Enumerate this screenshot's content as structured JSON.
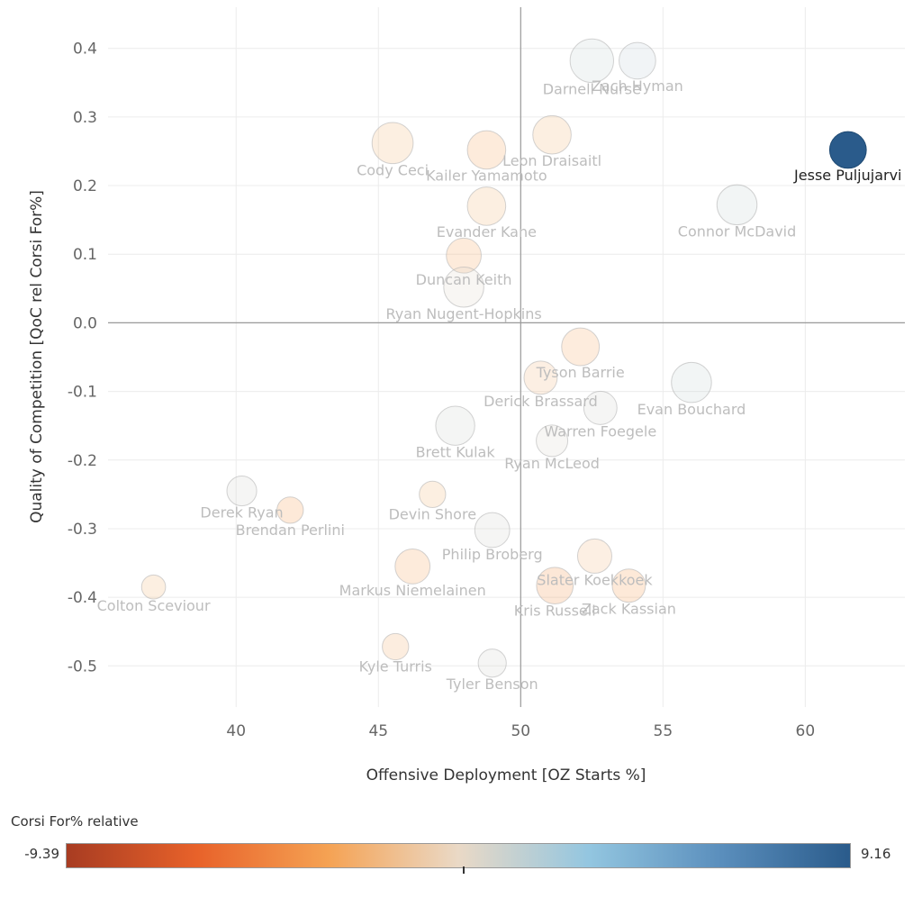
{
  "chart_data": {
    "type": "scatter",
    "title": "",
    "xlabel": "Offensive Deployment [OZ Starts %]",
    "ylabel": "Quality of Competition [QoC rel Corsi For%]",
    "xlim": [
      35.5,
      63.5
    ],
    "ylim": [
      -0.56,
      0.46
    ],
    "xticks": [
      "40",
      "45",
      "50",
      "55",
      "60"
    ],
    "yticks": [
      "0.4",
      "0.3",
      "0.2",
      "0.1",
      "0.0",
      "-0.1",
      "-0.2",
      "-0.3",
      "-0.4",
      "-0.5"
    ],
    "reference_lines": {
      "x": 50,
      "y": 0.0
    },
    "grid": true,
    "size_encoding": "relative ice time",
    "color_legend": {
      "title": "Corsi For% relative",
      "min_label": "-9.39",
      "max_label": "9.16",
      "min": -9.39,
      "max": 9.16,
      "colors": [
        "#a83c22",
        "#e8622a",
        "#f5a253",
        "#ead9c6",
        "#93c6e0",
        "#5b8fbd",
        "#2a5b8b"
      ]
    },
    "points": [
      {
        "name": "Zach Hyman",
        "x": 54.1,
        "y": 0.382,
        "size": 0.65,
        "cfrel": 1.5
      },
      {
        "name": "Darnell Nurse",
        "x": 52.5,
        "y": 0.382,
        "size": 0.85,
        "cfrel": 1.2
      },
      {
        "name": "Leon Draisaitl",
        "x": 51.1,
        "y": 0.274,
        "size": 0.7,
        "cfrel": -2.2
      },
      {
        "name": "Cody Ceci",
        "x": 45.5,
        "y": 0.262,
        "size": 0.78,
        "cfrel": -2.2
      },
      {
        "name": "Kailer Yamamoto",
        "x": 48.8,
        "y": 0.252,
        "size": 0.7,
        "cfrel": -3.0
      },
      {
        "name": "Jesse Puljujarvi",
        "x": 61.5,
        "y": 0.252,
        "size": 0.65,
        "cfrel": 9.16
      },
      {
        "name": "Connor McDavid",
        "x": 57.6,
        "y": 0.172,
        "size": 0.75,
        "cfrel": 1.2
      },
      {
        "name": "Evander Kane",
        "x": 48.8,
        "y": 0.17,
        "size": 0.7,
        "cfrel": -2.2
      },
      {
        "name": "Duncan Keith",
        "x": 48.0,
        "y": 0.098,
        "size": 0.6,
        "cfrel": -3.0
      },
      {
        "name": "Ryan Nugent-Hopkins",
        "x": 48.0,
        "y": 0.052,
        "size": 0.75,
        "cfrel": 0.3
      },
      {
        "name": "Tyson Barrie",
        "x": 52.1,
        "y": -0.035,
        "size": 0.68,
        "cfrel": -2.8
      },
      {
        "name": "Derick Brassard",
        "x": 50.7,
        "y": -0.08,
        "size": 0.55,
        "cfrel": -2.0
      },
      {
        "name": "Evan Bouchard",
        "x": 56.0,
        "y": -0.087,
        "size": 0.75,
        "cfrel": 1.3
      },
      {
        "name": "Warren Foegele",
        "x": 52.8,
        "y": -0.124,
        "size": 0.55,
        "cfrel": 0.8
      },
      {
        "name": "Brett Kulak",
        "x": 47.7,
        "y": -0.15,
        "size": 0.72,
        "cfrel": 1.0
      },
      {
        "name": "Ryan McLeod",
        "x": 51.1,
        "y": -0.172,
        "size": 0.5,
        "cfrel": 0.5
      },
      {
        "name": "Derek Ryan",
        "x": 40.2,
        "y": -0.245,
        "size": 0.45,
        "cfrel": 0.8
      },
      {
        "name": "Devin Shore",
        "x": 46.9,
        "y": -0.25,
        "size": 0.35,
        "cfrel": -2.2
      },
      {
        "name": "Brendan Perlini",
        "x": 41.9,
        "y": -0.273,
        "size": 0.35,
        "cfrel": -3.5
      },
      {
        "name": "Philip Broberg",
        "x": 49.0,
        "y": -0.302,
        "size": 0.6,
        "cfrel": 0.8
      },
      {
        "name": "Slater Koekkoek",
        "x": 52.6,
        "y": -0.34,
        "size": 0.58,
        "cfrel": -2.0
      },
      {
        "name": "Markus Niemelainen",
        "x": 46.2,
        "y": -0.355,
        "size": 0.6,
        "cfrel": -3.0
      },
      {
        "name": "Zack Kassian",
        "x": 53.8,
        "y": -0.383,
        "size": 0.55,
        "cfrel": -3.5
      },
      {
        "name": "Kris Russell",
        "x": 51.2,
        "y": -0.383,
        "size": 0.65,
        "cfrel": -4.0
      },
      {
        "name": "Colton Sceviour",
        "x": 37.1,
        "y": -0.385,
        "size": 0.28,
        "cfrel": -2.2
      },
      {
        "name": "Kyle Turris",
        "x": 45.6,
        "y": -0.472,
        "size": 0.35,
        "cfrel": -2.5
      },
      {
        "name": "Tyler Benson",
        "x": 49.0,
        "y": -0.496,
        "size": 0.4,
        "cfrel": 0.8
      }
    ],
    "highlighted": "Jesse Puljujarvi"
  }
}
